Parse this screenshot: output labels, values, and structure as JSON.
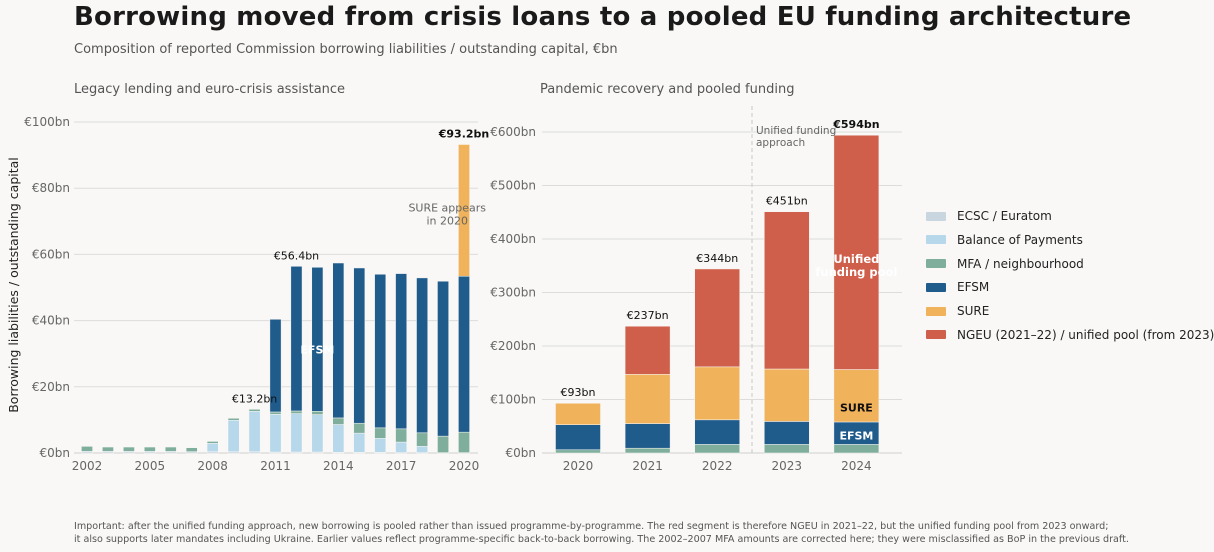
{
  "title": "Borrowing moved from crisis loans to a pooled EU funding architecture",
  "subtitle": "Composition of reported Commission borrowing liabilities / outstanding capital, €bn",
  "footnote": [
    "Important: after the unified funding approach, new borrowing is pooled rather than issued programme-by-programme. The red segment is therefore NGEU in 2021–22, but the unified funding pool from 2023 onward;",
    "it also supports later mandates including Ukraine. Earlier values reflect programme-specific back-to-back borrowing. The 2002–2007 MFA amounts are corrected here; they were misclassified as BoP in the previous draft."
  ],
  "colors": {
    "ecsc": "#c9d6e0",
    "bop": "#b7d7ea",
    "mfa": "#7faf9c",
    "efsm": "#1f5b8b",
    "sure": "#f0b25a",
    "ngeu": "#cf5f4b",
    "grid": "#dcdcdc",
    "axis_text": "#666666"
  },
  "legend": [
    {
      "key": "ecsc",
      "label": "ECSC / Euratom"
    },
    {
      "key": "bop",
      "label": "Balance of Payments"
    },
    {
      "key": "mfa",
      "label": "MFA / neighbourhood"
    },
    {
      "key": "efsm",
      "label": "EFSM"
    },
    {
      "key": "sure",
      "label": "SURE"
    },
    {
      "key": "ngeu",
      "label": "NGEU (2021–22) / unified pool (from 2023)"
    }
  ],
  "chart_data": [
    {
      "type": "bar",
      "stacked": true,
      "title": "Legacy lending and euro-crisis assistance",
      "ylabel": "Borrowing liabilities / outstanding capital",
      "ylim": [
        0,
        100
      ],
      "yticks": [
        0,
        20,
        40,
        60,
        80,
        100
      ],
      "ytick_labels": [
        "€0bn",
        "€20bn",
        "€40bn",
        "€60bn",
        "€80bn",
        "€100bn"
      ],
      "xticks": [
        "2002",
        "2005",
        "2008",
        "2011",
        "2014",
        "2017",
        "2020"
      ],
      "grid": true,
      "categories": [
        "2002",
        "2003",
        "2004",
        "2005",
        "2006",
        "2007",
        "2008",
        "2009",
        "2010",
        "2011",
        "2012",
        "2013",
        "2014",
        "2015",
        "2016",
        "2017",
        "2018",
        "2019",
        "2020"
      ],
      "series": [
        {
          "key": "ecsc",
          "name": "ECSC / Euratom",
          "values": [
            0.5,
            0.5,
            0.5,
            0.5,
            0.5,
            0.4,
            0.4,
            0.4,
            0.4,
            0.3,
            0.3,
            0.3,
            0.2,
            0.2,
            0.2,
            0.1,
            0.1,
            0.1,
            0.1
          ]
        },
        {
          "key": "bop",
          "name": "Balance of Payments",
          "values": [
            0,
            0,
            0,
            0,
            0,
            0,
            2.5,
            9.5,
            12.2,
            11.4,
            11.6,
            11.3,
            8.4,
            5.8,
            4.2,
            3.2,
            1.9,
            0,
            0
          ]
        },
        {
          "key": "mfa",
          "name": "MFA / neighbourhood",
          "values": [
            1.5,
            1.3,
            1.3,
            1.3,
            1.3,
            1.2,
            0.6,
            0.6,
            0.6,
            0.7,
            0.8,
            1.0,
            2.0,
            3.0,
            3.2,
            4.0,
            4.1,
            5.0,
            6.2
          ]
        },
        {
          "key": "efsm",
          "name": "EFSM",
          "values": [
            0,
            0,
            0,
            0,
            0,
            0,
            0,
            0,
            0,
            28.0,
            43.7,
            43.5,
            46.8,
            46.9,
            46.4,
            46.9,
            46.8,
            46.8,
            47.1
          ]
        },
        {
          "key": "sure",
          "name": "SURE",
          "values": [
            0,
            0,
            0,
            0,
            0,
            0,
            0,
            0,
            0,
            0,
            0,
            0,
            0,
            0,
            0,
            0,
            0,
            0,
            39.8
          ]
        }
      ],
      "value_labels": [
        {
          "category": "2010",
          "text": "€13.2bn"
        },
        {
          "category": "2012",
          "text": "€56.4bn"
        },
        {
          "category": "2020",
          "text": "€93.2bn"
        }
      ],
      "annotations": [
        {
          "text": "EFSM",
          "x": "2013",
          "y": 30
        },
        {
          "text_lines": [
            "SURE appears",
            "in 2020"
          ],
          "x": "2019.2",
          "y": 73
        }
      ]
    },
    {
      "type": "bar",
      "stacked": true,
      "title": "Pandemic recovery and pooled funding",
      "ylim": [
        0,
        640
      ],
      "yticks": [
        0,
        100,
        200,
        300,
        400,
        500,
        600
      ],
      "ytick_labels": [
        "€0bn",
        "€100bn",
        "€200bn",
        "€300bn",
        "€400bn",
        "€500bn",
        "€600bn"
      ],
      "grid": true,
      "categories": [
        "2020",
        "2021",
        "2022",
        "2023",
        "2024"
      ],
      "series": [
        {
          "key": "ecsc",
          "name": "ECSC / Euratom",
          "values": [
            0,
            0,
            0,
            0,
            0
          ]
        },
        {
          "key": "bop",
          "name": "Balance of Payments",
          "values": [
            0,
            0,
            0,
            0,
            0
          ]
        },
        {
          "key": "mfa",
          "name": "MFA / neighbourhood",
          "values": [
            6,
            9,
            16,
            16,
            16
          ]
        },
        {
          "key": "efsm",
          "name": "EFSM",
          "values": [
            47,
            46,
            46,
            43,
            42
          ]
        },
        {
          "key": "sure",
          "name": "SURE",
          "values": [
            40,
            92,
            99,
            98,
            98
          ]
        },
        {
          "key": "ngeu",
          "name": "NGEU (2021–22) / unified pool (from 2023)",
          "values": [
            0,
            90,
            183,
            294,
            438
          ]
        }
      ],
      "value_labels": [
        {
          "category": "2020",
          "text": "€93bn"
        },
        {
          "category": "2021",
          "text": "€237bn"
        },
        {
          "category": "2022",
          "text": "€344bn"
        },
        {
          "category": "2023",
          "text": "€451bn"
        },
        {
          "category": "2024",
          "text": "€594bn",
          "bold": true
        }
      ],
      "annotations": [
        {
          "text_lines": [
            "Unified funding",
            "approach"
          ],
          "x": "2022.5",
          "y": 600
        },
        {
          "text_lines": [
            "Unified",
            "funding pool"
          ],
          "x": "2024",
          "y": 355
        },
        {
          "text": "SURE",
          "x": "2024",
          "y": 78
        },
        {
          "text": "EFSM",
          "x": "2024",
          "y": 25
        }
      ]
    }
  ]
}
